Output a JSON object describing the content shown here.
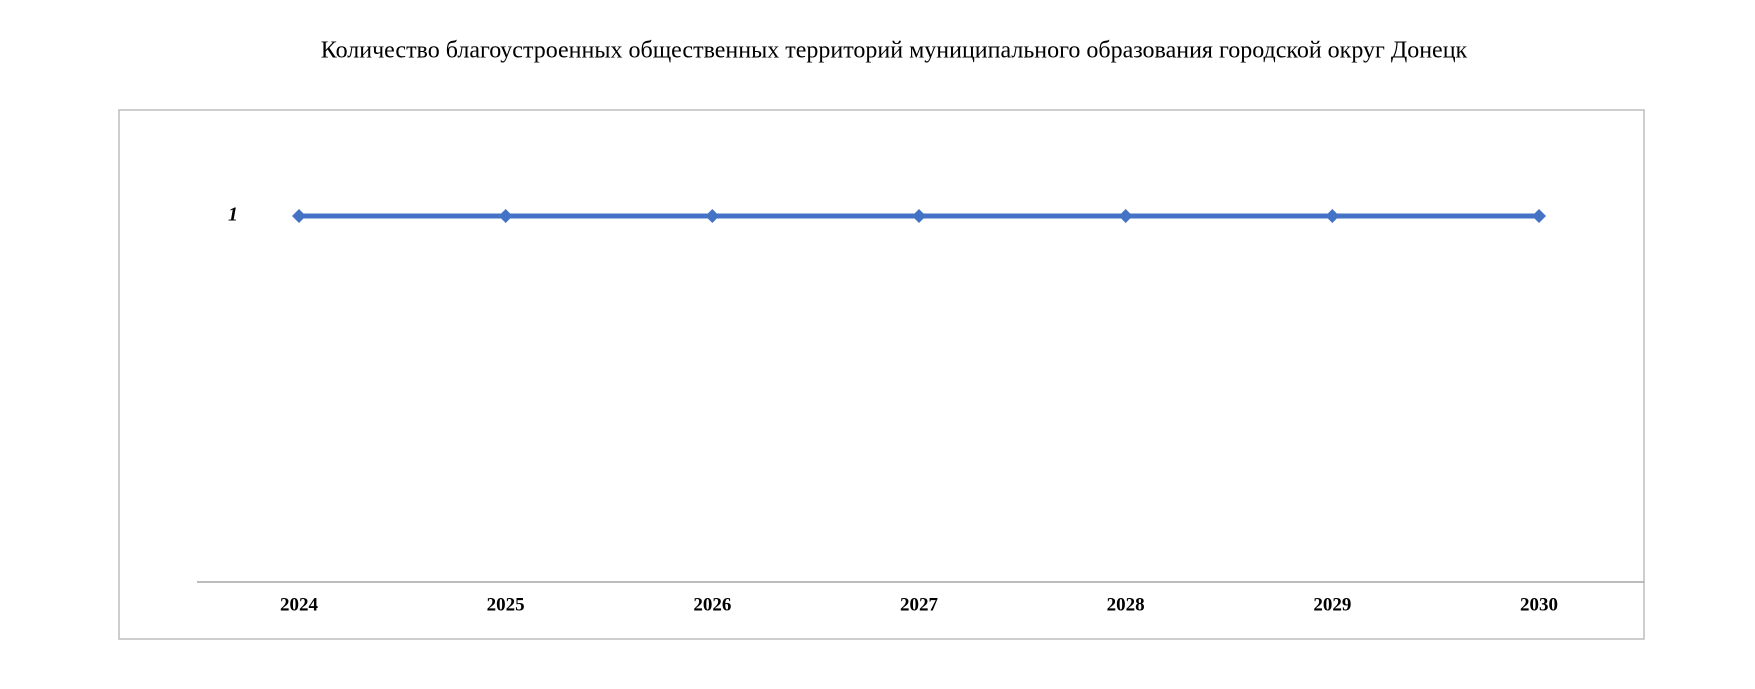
{
  "chart_data": {
    "type": "line",
    "title": "Количество благоустроенных общественных территорий муниципального образования городской округ Донецк",
    "categories": [
      "2024",
      "2025",
      "2026",
      "2027",
      "2028",
      "2029",
      "2030"
    ],
    "series": [
      {
        "color": "#4472c4",
        "values": [
          1,
          1,
          1,
          1,
          1,
          1,
          1
        ]
      }
    ],
    "ylim": [
      0,
      1.28
    ],
    "yticks": [
      1
    ],
    "grid": false
  }
}
